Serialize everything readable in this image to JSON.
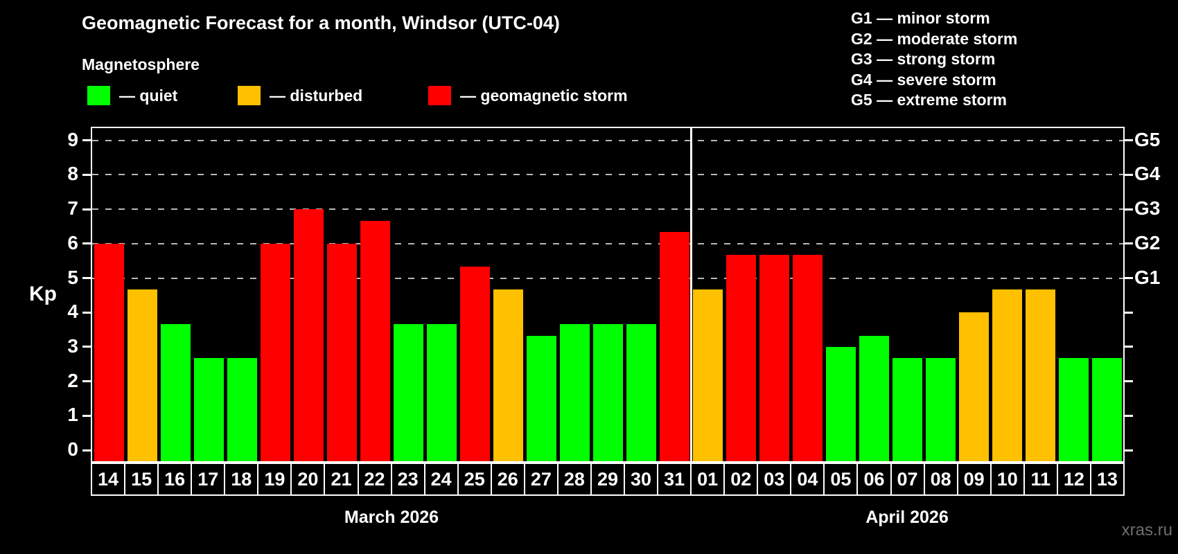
{
  "header": {
    "title": "Geomagnetic Forecast for a month, Windsor (UTC-04)",
    "subtitle": "Magnetosphere",
    "watermark": "xras.ru"
  },
  "legend": {
    "items": [
      {
        "status": "quiet",
        "label": "— quiet",
        "color": "#00ff00"
      },
      {
        "status": "disturbed",
        "label": "— disturbed",
        "color": "#ffc000"
      },
      {
        "status": "storm",
        "label": "— geomagnetic storm",
        "color": "#ff0000"
      }
    ]
  },
  "g_scale_legend": {
    "lines": [
      "G1 — minor storm",
      "G2 — moderate storm",
      "G3 — strong storm",
      "G4 — severe storm",
      "G5 — extreme storm"
    ]
  },
  "chart_data": {
    "type": "bar",
    "ylabel": "Kp",
    "ylim": [
      0,
      9
    ],
    "yticks": [
      0,
      1,
      2,
      3,
      4,
      5,
      6,
      7,
      8,
      9
    ],
    "gridlines_at": [
      5,
      6,
      7,
      8,
      9
    ],
    "grid_on": true,
    "right_axis_labels": [
      {
        "kp": 9,
        "text": "G5"
      },
      {
        "kp": 8,
        "text": "G4"
      },
      {
        "kp": 7,
        "text": "G3"
      },
      {
        "kp": 6,
        "text": "G2"
      },
      {
        "kp": 5,
        "text": "G1"
      }
    ],
    "status_colors": {
      "quiet": "#00ff00",
      "disturbed": "#ffc000",
      "storm": "#ff0000"
    },
    "months": [
      {
        "label": "March 2026",
        "days": [
          {
            "date": "14",
            "kp": 6.0,
            "status": "storm"
          },
          {
            "date": "15",
            "kp": 4.67,
            "status": "disturbed"
          },
          {
            "date": "16",
            "kp": 3.67,
            "status": "quiet"
          },
          {
            "date": "17",
            "kp": 2.67,
            "status": "quiet"
          },
          {
            "date": "18",
            "kp": 2.67,
            "status": "quiet"
          },
          {
            "date": "19",
            "kp": 6.0,
            "status": "storm"
          },
          {
            "date": "20",
            "kp": 7.0,
            "status": "storm"
          },
          {
            "date": "21",
            "kp": 6.0,
            "status": "storm"
          },
          {
            "date": "22",
            "kp": 6.67,
            "status": "storm"
          },
          {
            "date": "23",
            "kp": 3.67,
            "status": "quiet"
          },
          {
            "date": "24",
            "kp": 3.67,
            "status": "quiet"
          },
          {
            "date": "25",
            "kp": 5.33,
            "status": "storm"
          },
          {
            "date": "26",
            "kp": 4.67,
            "status": "disturbed"
          },
          {
            "date": "27",
            "kp": 3.33,
            "status": "quiet"
          },
          {
            "date": "28",
            "kp": 3.67,
            "status": "quiet"
          },
          {
            "date": "29",
            "kp": 3.67,
            "status": "quiet"
          },
          {
            "date": "30",
            "kp": 3.67,
            "status": "quiet"
          },
          {
            "date": "31",
            "kp": 6.33,
            "status": "storm"
          }
        ]
      },
      {
        "label": "April 2026",
        "days": [
          {
            "date": "01",
            "kp": 4.67,
            "status": "disturbed"
          },
          {
            "date": "02",
            "kp": 5.67,
            "status": "storm"
          },
          {
            "date": "03",
            "kp": 5.67,
            "status": "storm"
          },
          {
            "date": "04",
            "kp": 5.67,
            "status": "storm"
          },
          {
            "date": "05",
            "kp": 3.0,
            "status": "quiet"
          },
          {
            "date": "06",
            "kp": 3.33,
            "status": "quiet"
          },
          {
            "date": "07",
            "kp": 2.67,
            "status": "quiet"
          },
          {
            "date": "08",
            "kp": 2.67,
            "status": "quiet"
          },
          {
            "date": "09",
            "kp": 4.0,
            "status": "disturbed"
          },
          {
            "date": "10",
            "kp": 4.67,
            "status": "disturbed"
          },
          {
            "date": "11",
            "kp": 4.67,
            "status": "disturbed"
          },
          {
            "date": "12",
            "kp": 2.67,
            "status": "quiet"
          },
          {
            "date": "13",
            "kp": 2.67,
            "status": "quiet"
          }
        ]
      }
    ]
  }
}
